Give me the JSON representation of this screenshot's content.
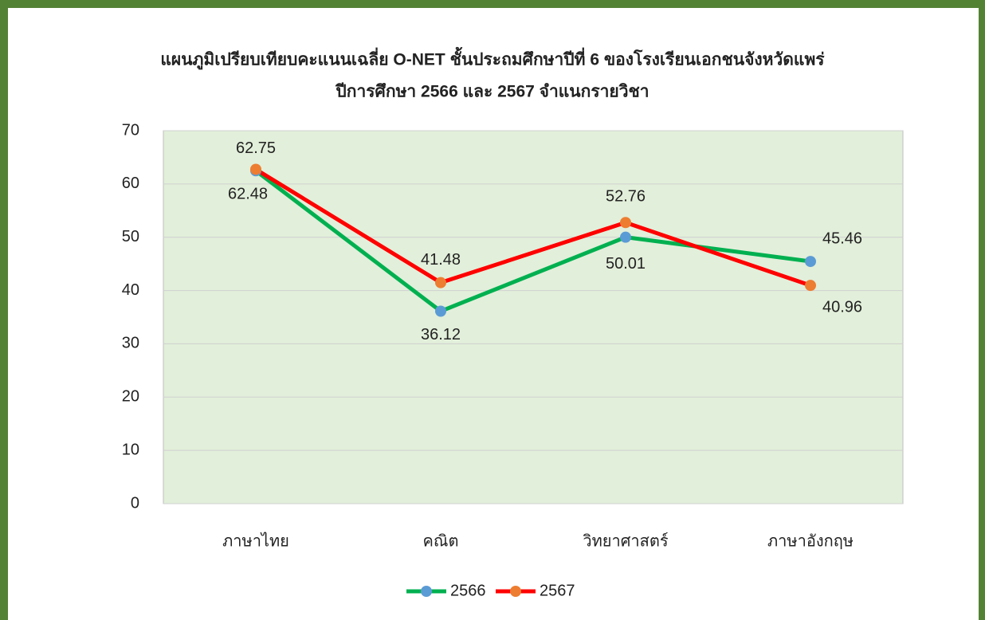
{
  "chart_data": {
    "type": "line",
    "title": [
      "แผนภูมิเปรียบเทียบคะแนนเฉลี่ย O-NET ชั้นประถมศึกษาปีที่ 6 ของโรงเรียนเอกชนจังหวัดแพร่",
      "ปีการศึกษา 2566 และ 2567  จำแนกรายวิชา"
    ],
    "categories": [
      "ภาษาไทย",
      "คณิต",
      "วิทยาศาสตร์",
      "ภาษาอังกฤษ"
    ],
    "series": [
      {
        "name": "2566",
        "color": "#00b050",
        "marker_color": "#5b9bd5",
        "values": [
          62.48,
          36.12,
          50.01,
          45.46
        ]
      },
      {
        "name": "2567",
        "color": "#ff0000",
        "marker_color": "#ed7d31",
        "values": [
          62.75,
          41.48,
          52.76,
          40.96
        ]
      }
    ],
    "ylim": [
      0,
      70
    ],
    "yticks": [
      0,
      10,
      20,
      30,
      40,
      50,
      60,
      70
    ],
    "grid": true,
    "plot_background": "#e2efda",
    "legend": "bottom"
  }
}
